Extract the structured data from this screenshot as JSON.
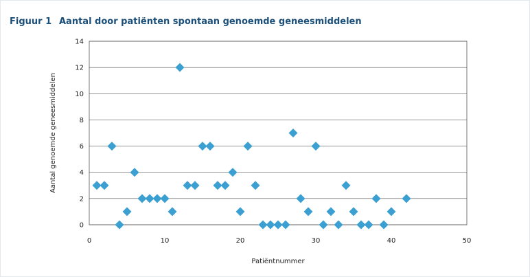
{
  "figure": {
    "number": "Figuur 1",
    "title": "Aantal door patiënten spontaan genoemde geneesmiddelen"
  },
  "colors": {
    "marker": "#3b9fd1",
    "grid": "#555555",
    "caption": "#1a4f7a"
  },
  "chart_data": {
    "type": "scatter",
    "title": "",
    "xlabel": "Patiëntnummer",
    "ylabel": "Aantal genoemde geneesmiddelen",
    "xlim": [
      0,
      50
    ],
    "ylim": [
      0,
      14
    ],
    "xticks": [
      0,
      10,
      20,
      30,
      40,
      50
    ],
    "yticks": [
      0,
      2,
      4,
      6,
      8,
      10,
      12,
      14
    ],
    "grid": "horizontal",
    "marker": "diamond",
    "points": [
      {
        "x": 1,
        "y": 3
      },
      {
        "x": 2,
        "y": 3
      },
      {
        "x": 3,
        "y": 6
      },
      {
        "x": 4,
        "y": 0
      },
      {
        "x": 5,
        "y": 1
      },
      {
        "x": 6,
        "y": 4
      },
      {
        "x": 7,
        "y": 2
      },
      {
        "x": 8,
        "y": 2
      },
      {
        "x": 9,
        "y": 2
      },
      {
        "x": 10,
        "y": 2
      },
      {
        "x": 11,
        "y": 1
      },
      {
        "x": 12,
        "y": 12
      },
      {
        "x": 13,
        "y": 3
      },
      {
        "x": 14,
        "y": 3
      },
      {
        "x": 15,
        "y": 6
      },
      {
        "x": 16,
        "y": 6
      },
      {
        "x": 17,
        "y": 3
      },
      {
        "x": 18,
        "y": 3
      },
      {
        "x": 19,
        "y": 4
      },
      {
        "x": 20,
        "y": 1
      },
      {
        "x": 21,
        "y": 6
      },
      {
        "x": 22,
        "y": 3
      },
      {
        "x": 23,
        "y": 0
      },
      {
        "x": 24,
        "y": 0
      },
      {
        "x": 25,
        "y": 0
      },
      {
        "x": 26,
        "y": 0
      },
      {
        "x": 27,
        "y": 7
      },
      {
        "x": 28,
        "y": 2
      },
      {
        "x": 29,
        "y": 1
      },
      {
        "x": 30,
        "y": 6
      },
      {
        "x": 31,
        "y": 0
      },
      {
        "x": 32,
        "y": 1
      },
      {
        "x": 33,
        "y": 0
      },
      {
        "x": 34,
        "y": 3
      },
      {
        "x": 35,
        "y": 1
      },
      {
        "x": 36,
        "y": 0
      },
      {
        "x": 37,
        "y": 0
      },
      {
        "x": 38,
        "y": 2
      },
      {
        "x": 39,
        "y": 0
      },
      {
        "x": 40,
        "y": 1
      },
      {
        "x": 42,
        "y": 2
      }
    ]
  }
}
